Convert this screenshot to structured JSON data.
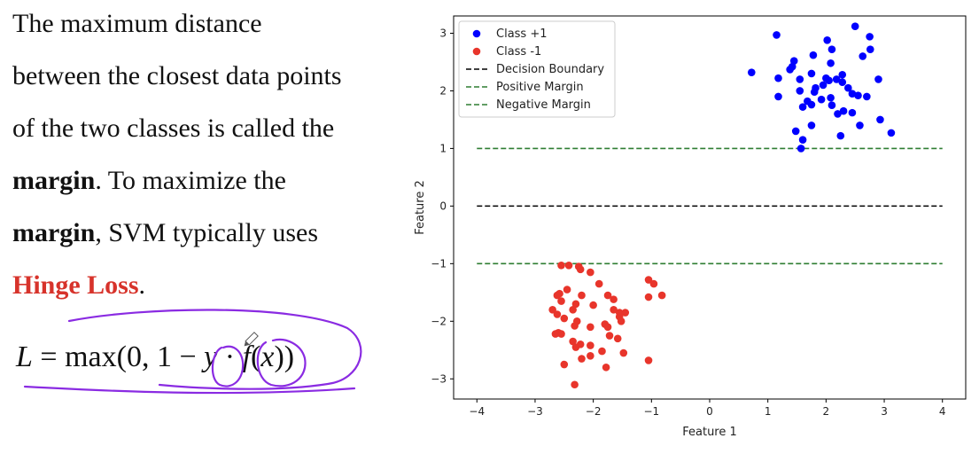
{
  "text": {
    "line1": "The maximum distance",
    "line2": "between the closest data points",
    "line3": "of the two classes is called the",
    "line4_bold": "margin",
    "line4_rest": ". To maximize the",
    "line5_bold": "margin",
    "line5_rest": ", SVM typically uses",
    "line6_red": "Hinge Loss",
    "line6_rest": "."
  },
  "formula": {
    "lhs": "L",
    "eq": " = max(0, 1 − ",
    "y": "y",
    "dot": " · ",
    "f": "f",
    "paren_open": "(",
    "x": "x",
    "paren_close": "))"
  },
  "colors": {
    "highlight_red": "#d7332b",
    "annotation_purple": "#8a2be2",
    "class_pos": "#0000ff",
    "class_neg": "#e8352b",
    "decision": "#000000",
    "margin": "#2e7d32"
  },
  "chart_data": {
    "type": "scatter",
    "xlabel": "Feature 1",
    "ylabel": "Feature 2",
    "xlim": [
      -4.4,
      4.4
    ],
    "ylim": [
      -3.35,
      3.3
    ],
    "xticks": [
      -4,
      -3,
      -2,
      -1,
      0,
      1,
      2,
      3,
      4
    ],
    "yticks": [
      -3,
      -2,
      -1,
      0,
      1,
      2,
      3
    ],
    "xtick_labels": [
      "−4",
      "−3",
      "−2",
      "−1",
      "0",
      "1",
      "2",
      "3",
      "4"
    ],
    "ytick_labels": [
      "−3",
      "−2",
      "−1",
      "0",
      "1",
      "2",
      "3"
    ],
    "legend_position": "top-left",
    "series": [
      {
        "name": "Class +1",
        "kind": "points",
        "color": "#0000ff",
        "points": [
          [
            2.5,
            3.12
          ],
          [
            1.15,
            2.97
          ],
          [
            2.75,
            2.94
          ],
          [
            2.02,
            2.88
          ],
          [
            2.1,
            2.72
          ],
          [
            2.76,
            2.72
          ],
          [
            1.78,
            2.62
          ],
          [
            2.63,
            2.6
          ],
          [
            1.45,
            2.52
          ],
          [
            2.08,
            2.48
          ],
          [
            1.42,
            2.42
          ],
          [
            1.38,
            2.37
          ],
          [
            0.72,
            2.32
          ],
          [
            1.75,
            2.3
          ],
          [
            2.28,
            2.28
          ],
          [
            1.55,
            2.2
          ],
          [
            2.0,
            2.22
          ],
          [
            2.05,
            2.18
          ],
          [
            2.18,
            2.2
          ],
          [
            2.28,
            2.15
          ],
          [
            2.9,
            2.2
          ],
          [
            1.18,
            2.22
          ],
          [
            1.82,
            2.05
          ],
          [
            1.95,
            2.1
          ],
          [
            2.38,
            2.05
          ],
          [
            1.55,
            2.0
          ],
          [
            2.45,
            1.95
          ],
          [
            2.55,
            1.92
          ],
          [
            2.7,
            1.9
          ],
          [
            1.18,
            1.9
          ],
          [
            1.8,
            1.98
          ],
          [
            1.92,
            1.85
          ],
          [
            2.08,
            1.88
          ],
          [
            1.68,
            1.82
          ],
          [
            1.6,
            1.72
          ],
          [
            1.75,
            1.76
          ],
          [
            2.1,
            1.75
          ],
          [
            2.3,
            1.65
          ],
          [
            2.2,
            1.6
          ],
          [
            2.45,
            1.62
          ],
          [
            2.93,
            1.5
          ],
          [
            1.75,
            1.4
          ],
          [
            2.58,
            1.4
          ],
          [
            1.48,
            1.3
          ],
          [
            3.12,
            1.27
          ],
          [
            2.25,
            1.22
          ],
          [
            1.6,
            1.15
          ],
          [
            1.57,
            1.0
          ]
        ]
      },
      {
        "name": "Class -1",
        "kind": "points",
        "color": "#e8352b",
        "points": [
          [
            -2.55,
            -1.03
          ],
          [
            -2.42,
            -1.03
          ],
          [
            -2.25,
            -1.05
          ],
          [
            -2.22,
            -1.1
          ],
          [
            -2.05,
            -1.15
          ],
          [
            -1.05,
            -1.28
          ],
          [
            -0.96,
            -1.35
          ],
          [
            -1.9,
            -1.35
          ],
          [
            -2.45,
            -1.45
          ],
          [
            -2.58,
            -1.52
          ],
          [
            -2.62,
            -1.55
          ],
          [
            -2.2,
            -1.55
          ],
          [
            -1.05,
            -1.58
          ],
          [
            -0.82,
            -1.55
          ],
          [
            -1.75,
            -1.55
          ],
          [
            -1.65,
            -1.62
          ],
          [
            -2.55,
            -1.65
          ],
          [
            -2.3,
            -1.7
          ],
          [
            -2.35,
            -1.8
          ],
          [
            -2.0,
            -1.72
          ],
          [
            -2.7,
            -1.8
          ],
          [
            -2.62,
            -1.88
          ],
          [
            -1.65,
            -1.8
          ],
          [
            -1.55,
            -1.85
          ],
          [
            -1.45,
            -1.85
          ],
          [
            -2.5,
            -1.95
          ],
          [
            -2.28,
            -2.0
          ],
          [
            -2.32,
            -2.08
          ],
          [
            -1.55,
            -1.92
          ],
          [
            -1.52,
            -2.0
          ],
          [
            -1.8,
            -2.05
          ],
          [
            -2.05,
            -2.1
          ],
          [
            -1.75,
            -2.1
          ],
          [
            -2.6,
            -2.2
          ],
          [
            -2.55,
            -2.22
          ],
          [
            -2.65,
            -2.22
          ],
          [
            -1.72,
            -2.25
          ],
          [
            -1.58,
            -2.3
          ],
          [
            -2.35,
            -2.35
          ],
          [
            -2.22,
            -2.4
          ],
          [
            -2.05,
            -2.42
          ],
          [
            -2.3,
            -2.45
          ],
          [
            -1.85,
            -2.52
          ],
          [
            -1.48,
            -2.55
          ],
          [
            -2.05,
            -2.6
          ],
          [
            -2.2,
            -2.65
          ],
          [
            -1.05,
            -2.68
          ],
          [
            -2.5,
            -2.75
          ],
          [
            -1.78,
            -2.8
          ],
          [
            -2.32,
            -3.1
          ]
        ]
      },
      {
        "name": "Decision Boundary",
        "kind": "hline",
        "y": 0,
        "x_range": [
          -4,
          4
        ],
        "color": "#000000"
      },
      {
        "name": "Positive Margin",
        "kind": "hline",
        "y": 1,
        "x_range": [
          -4,
          4
        ],
        "color": "#2e7d32"
      },
      {
        "name": "Negative Margin",
        "kind": "hline",
        "y": -1,
        "x_range": [
          -4,
          4
        ],
        "color": "#2e7d32"
      }
    ]
  }
}
